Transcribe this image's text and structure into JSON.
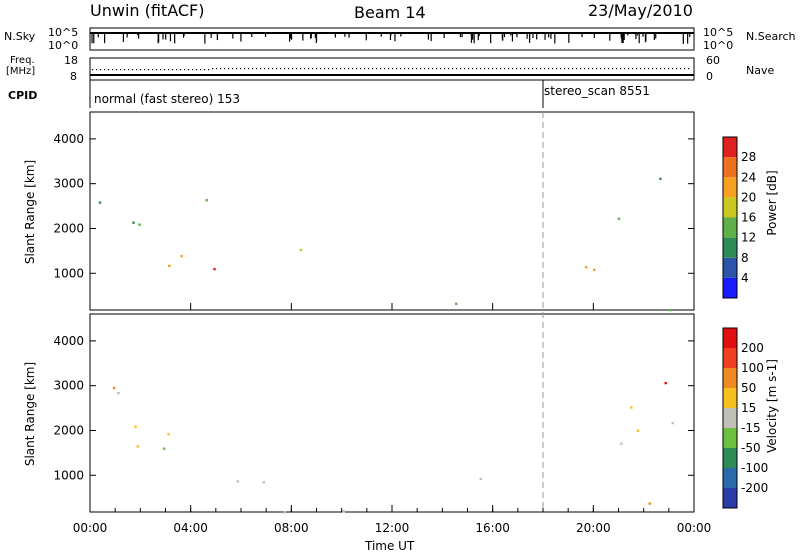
{
  "header": {
    "station": "Unwin (fitACF)",
    "beam": "Beam 14",
    "date": "23/May/2010"
  },
  "top_panels": {
    "nsky_label": "N.Sky",
    "nsky_ticks": [
      "10^5",
      "10^0"
    ],
    "nsearch_label": "N.Search",
    "nsearch_ticks": [
      "10^5",
      "10^0"
    ],
    "freq_label_line1": "Freq.",
    "freq_label_line2": "[MHz]",
    "freq_ticks": [
      "18",
      "8"
    ],
    "nave_label": "Nave",
    "nave_ticks": [
      "60",
      "0"
    ],
    "cpid_label": "CPID",
    "cpid_segments": [
      {
        "start_hour": 0,
        "text": "normal (fast stereo) 153"
      },
      {
        "start_hour": 18,
        "text": "stereo_scan 8551"
      }
    ]
  },
  "chart_data": [
    {
      "type": "heatmap",
      "name": "power-panel",
      "ylabel": "Slant Range [km]",
      "xlabel": "",
      "x_range_hours": [
        0,
        24
      ],
      "ylim": [
        180,
        4600
      ],
      "yticks": [
        1000,
        2000,
        3000,
        4000
      ],
      "colorbar": {
        "label": "Power [dB]",
        "ticks": [
          "4",
          "8",
          "12",
          "16",
          "20",
          "24",
          "28"
        ],
        "colors": [
          "#1a1aff",
          "#2a55a8",
          "#2e8b57",
          "#5fb04a",
          "#c8c820",
          "#f5a020",
          "#f07020",
          "#e02020"
        ]
      },
      "echo_regions": [
        {
          "x0": 0.2,
          "x1": 6.7,
          "y0": 1100,
          "y1": 1650,
          "level": 5
        },
        {
          "x0": 0.2,
          "x1": 6.0,
          "y0": 2350,
          "y1": 3200,
          "level": 2
        },
        {
          "x0": 0.2,
          "x1": 7.5,
          "y0": 1650,
          "y1": 2350,
          "level": 3
        },
        {
          "x0": 4.6,
          "x1": 8.6,
          "y0": 500,
          "y1": 1300,
          "level": 6
        },
        {
          "x0": 6.5,
          "x1": 8.5,
          "y0": 1000,
          "y1": 1600,
          "level": 4
        },
        {
          "x0": 9.5,
          "x1": 11.5,
          "y0": 1000,
          "y1": 1400,
          "level": 1
        },
        {
          "x0": 12.2,
          "x1": 13.3,
          "y0": 800,
          "y1": 1400,
          "level": 1
        },
        {
          "x0": 14.2,
          "x1": 15.5,
          "y0": 1100,
          "y1": 1500,
          "level": 1
        },
        {
          "x0": 12.5,
          "x1": 14.5,
          "y0": 250,
          "y1": 600,
          "level": 6
        },
        {
          "x0": 0.2,
          "x1": 24,
          "y0": 200,
          "y1": 400,
          "level": 2
        },
        {
          "x0": 19.5,
          "x1": 24,
          "y0": 1000,
          "y1": 2200,
          "level": 6
        },
        {
          "x0": 20.5,
          "x1": 24,
          "y0": 2000,
          "y1": 3200,
          "level": 3
        }
      ]
    },
    {
      "type": "heatmap",
      "name": "velocity-panel",
      "ylabel": "Slant Range [km]",
      "xlabel": "Time UT",
      "x_range_hours": [
        0,
        24
      ],
      "ylim": [
        180,
        4600
      ],
      "yticks": [
        1000,
        2000,
        3000,
        4000
      ],
      "xticks": [
        "00:00",
        "04:00",
        "08:00",
        "12:00",
        "16:00",
        "20:00",
        "00:00"
      ],
      "colorbar": {
        "label": "Velocity [m s-1]",
        "ticks": [
          "200",
          "100",
          "50",
          "15",
          "-15",
          "-50",
          "-100",
          "-200"
        ],
        "colors": [
          "#2a3aa8",
          "#2a6aa8",
          "#2e8b57",
          "#6cc040",
          "#c0c0b8",
          "#f5c020",
          "#f08a20",
          "#f04020",
          "#e01010"
        ]
      },
      "echo_regions": [
        {
          "x0": 0.2,
          "x1": 7.0,
          "y0": 1100,
          "y1": 2350,
          "level": 4
        },
        {
          "x0": 0.2,
          "x1": 6.0,
          "y0": 2350,
          "y1": 2900,
          "level": 4
        },
        {
          "x0": 0.2,
          "x1": 6.0,
          "y0": 2900,
          "y1": 3250,
          "level": 6
        },
        {
          "x0": 6.5,
          "x1": 8.6,
          "y0": 800,
          "y1": 1700,
          "level": 5
        },
        {
          "x0": 4.6,
          "x1": 6.5,
          "y0": 500,
          "y1": 1200,
          "level": 4
        },
        {
          "x0": 9.5,
          "x1": 11.5,
          "y0": 1000,
          "y1": 1400,
          "level": 4
        },
        {
          "x0": 12.2,
          "x1": 15.5,
          "y0": 900,
          "y1": 1500,
          "level": 4
        },
        {
          "x0": 0.2,
          "x1": 24,
          "y0": 200,
          "y1": 450,
          "level": 5
        },
        {
          "x0": 19.5,
          "x1": 24,
          "y0": 1000,
          "y1": 2800,
          "level": 4
        },
        {
          "x0": 20.5,
          "x1": 24,
          "y0": 2800,
          "y1": 3250,
          "level": 7
        }
      ]
    }
  ],
  "marker_hour": 18
}
